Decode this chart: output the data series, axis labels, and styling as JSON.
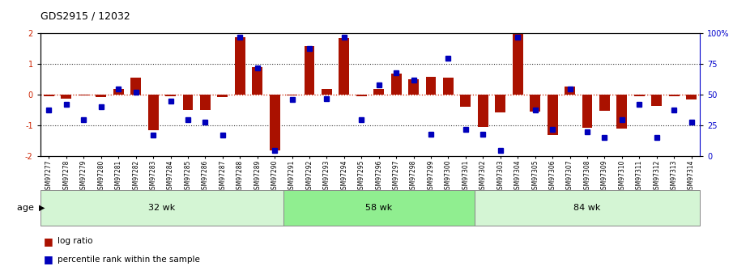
{
  "title": "GDS2915 / 12032",
  "samples": [
    "GSM97277",
    "GSM97278",
    "GSM97279",
    "GSM97280",
    "GSM97281",
    "GSM97282",
    "GSM97283",
    "GSM97284",
    "GSM97285",
    "GSM97286",
    "GSM97287",
    "GSM97288",
    "GSM97289",
    "GSM97290",
    "GSM97291",
    "GSM97292",
    "GSM97293",
    "GSM97294",
    "GSM97295",
    "GSM97296",
    "GSM97297",
    "GSM97298",
    "GSM97299",
    "GSM97300",
    "GSM97301",
    "GSM97302",
    "GSM97303",
    "GSM97304",
    "GSM97305",
    "GSM97306",
    "GSM97307",
    "GSM97308",
    "GSM97309",
    "GSM97310",
    "GSM97311",
    "GSM97312",
    "GSM97313",
    "GSM97314"
  ],
  "log_ratio": [
    -0.05,
    -0.12,
    -0.03,
    -0.07,
    0.2,
    0.55,
    -1.15,
    -0.05,
    -0.48,
    -0.48,
    -0.07,
    1.88,
    0.9,
    -1.8,
    -0.02,
    1.6,
    0.18,
    1.85,
    -0.05,
    0.2,
    0.68,
    0.5,
    0.6,
    0.55,
    -0.38,
    -1.05,
    -0.58,
    2.0,
    -0.55,
    -1.3,
    0.28,
    -1.08,
    -0.52,
    -1.1,
    -0.04,
    -0.35,
    -0.05,
    -0.15
  ],
  "percentile": [
    38,
    42,
    30,
    40,
    55,
    52,
    17,
    45,
    30,
    28,
    17,
    97,
    72,
    5,
    46,
    88,
    47,
    97,
    30,
    58,
    68,
    62,
    18,
    80,
    22,
    18,
    5,
    97,
    38,
    22,
    55,
    20,
    15,
    30,
    42,
    15,
    38,
    28
  ],
  "groups": [
    {
      "label": "32 wk",
      "start": 0,
      "end": 14
    },
    {
      "label": "58 wk",
      "start": 14,
      "end": 25
    },
    {
      "label": "84 wk",
      "start": 25,
      "end": 38
    }
  ],
  "group_light_color": "#d4f5d4",
  "group_mid_color": "#90ee90",
  "bar_color": "#aa1100",
  "dot_color": "#0000bb",
  "ylim": [
    -2,
    2
  ],
  "yticks_left": [
    -2,
    -1,
    0,
    1,
    2
  ],
  "yticks_right": [
    0,
    25,
    50,
    75,
    100
  ],
  "hline0_color": "#cc2200",
  "hline_dotted_color": "#333333",
  "bg_color": "white",
  "right_axis_color": "#0000cc",
  "left_axis_color": "#cc2200"
}
